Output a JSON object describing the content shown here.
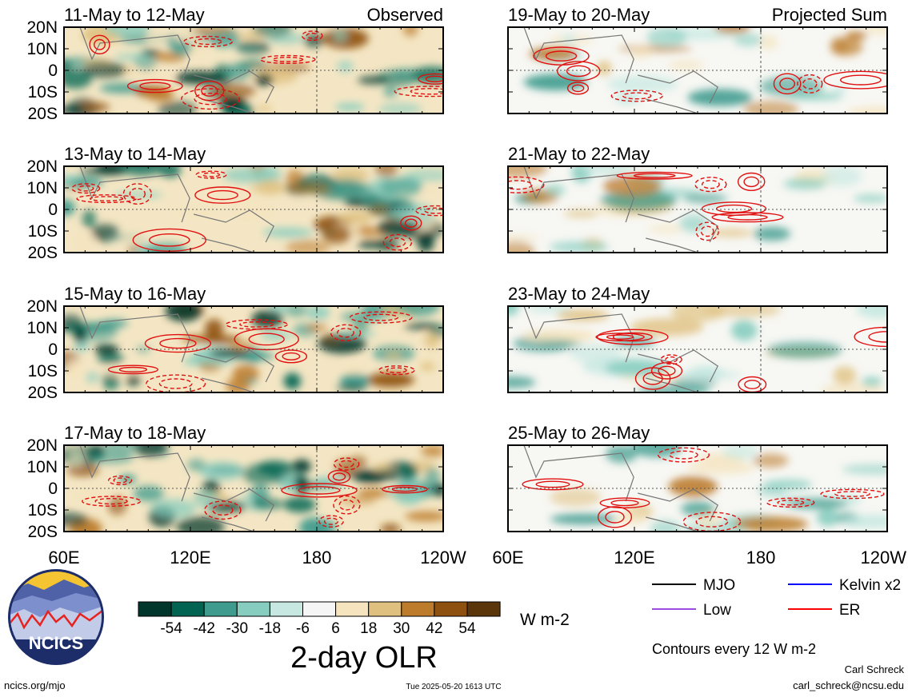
{
  "chart_data": {
    "type": "heatmap",
    "title": "2-day OLR",
    "units": "W m-2",
    "contour_note": "Contours every 12 W m-2",
    "column_labels": [
      "Observed",
      "Projected Sum"
    ],
    "latitude_ticks": [
      "20N",
      "10N",
      "0",
      "10S",
      "20S"
    ],
    "longitude_ticks": [
      "60E",
      "120E",
      "180",
      "120W"
    ],
    "latitude_range": [
      -20,
      20
    ],
    "longitude_range": [
      60,
      240
    ],
    "colorbar": {
      "labels": [
        "-54",
        "-42",
        "-30",
        "-18",
        "-6",
        "6",
        "18",
        "30",
        "42",
        "54"
      ],
      "colors": [
        "#00362b",
        "#016452",
        "#3e9b8e",
        "#86cdbf",
        "#c6e8e1",
        "#f5f5f5",
        "#f5e4be",
        "#dfc07e",
        "#bc7c2c",
        "#8f5110",
        "#5b360a"
      ]
    },
    "legend": [
      {
        "name": "MJO",
        "color": "#000000"
      },
      {
        "name": "Kelvin x2",
        "color": "#0000ff"
      },
      {
        "name": "Low",
        "color": "#9a4be0"
      },
      {
        "name": "ER",
        "color": "#ff0000"
      }
    ],
    "panels": [
      {
        "title": "11-May to 12-May",
        "group": "observed"
      },
      {
        "title": "19-May to 20-May",
        "group": "projected"
      },
      {
        "title": "13-May to 14-May",
        "group": "observed"
      },
      {
        "title": "21-May to 22-May",
        "group": "projected"
      },
      {
        "title": "15-May to 16-May",
        "group": "observed"
      },
      {
        "title": "23-May to 24-May",
        "group": "projected"
      },
      {
        "title": "17-May to 18-May",
        "group": "observed"
      },
      {
        "title": "25-May to 26-May",
        "group": "projected"
      }
    ]
  },
  "footer": {
    "logo_text": "NCICS",
    "url": "ncics.org/mjo",
    "timestamp": "Tue 2025-05-20 1613 UTC",
    "author": "Carl Schreck",
    "email": "carl_schreck@ncsu.edu"
  }
}
